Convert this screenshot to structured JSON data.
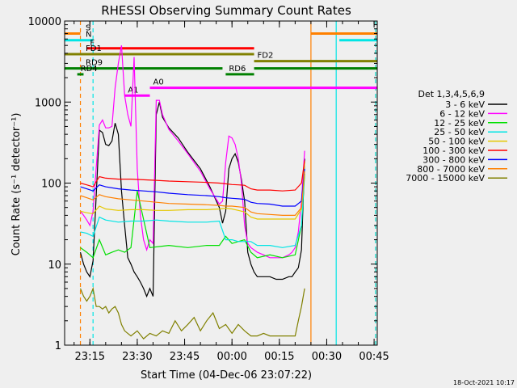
{
  "chart_data": {
    "type": "line",
    "title": "RHESSI Observing Summary Count Rates",
    "xlabel": "Start Time (04-Dec-06 23:07:22)",
    "ylabel": "Count Rate (s⁻¹ detector⁻¹)",
    "footer": "18-Oct-2021 10:17",
    "log_y": true,
    "xlim": [
      "23:07",
      "00:46"
    ],
    "ylim": [
      1,
      10000
    ],
    "x_ticks": [
      "23:15",
      "23:30",
      "23:45",
      "00:00",
      "00:15",
      "00:30",
      "00:45"
    ],
    "y_ticks": [
      "1",
      "10",
      "100",
      "1000",
      "10000"
    ],
    "legend_title": "Det 1,3,4,5,6,9",
    "series": [
      {
        "name": "3 - 6 keV",
        "color": "#000000",
        "x": [
          "23:12",
          "23:13",
          "23:14",
          "23:15",
          "23:16",
          "23:18",
          "23:19",
          "23:20",
          "23:21",
          "23:22",
          "23:23",
          "23:24",
          "23:25",
          "23:26",
          "23:27",
          "23:28",
          "23:29",
          "23:30",
          "23:31",
          "23:32",
          "23:33",
          "23:34",
          "23:35",
          "23:36",
          "23:37",
          "23:38",
          "23:40",
          "23:43",
          "23:46",
          "23:50",
          "23:53",
          "23:56",
          "23:57",
          "23:58",
          "23:59",
          "23:60",
          "00:01",
          "00:02",
          "00:03",
          "00:04",
          "00:05",
          "00:06",
          "00:07",
          "00:08",
          "00:10",
          "00:12",
          "00:14",
          "00:16",
          "00:18",
          "00:19",
          "00:20",
          "00:21",
          "00:22",
          "00:23"
        ],
        "y": [
          14,
          10,
          8,
          7,
          11,
          450,
          420,
          300,
          290,
          330,
          550,
          400,
          80,
          30,
          12,
          10,
          8,
          7,
          6,
          5,
          4,
          5,
          4,
          700,
          1000,
          650,
          480,
          360,
          240,
          150,
          90,
          50,
          32,
          45,
          150,
          200,
          230,
          180,
          110,
          60,
          14,
          10,
          8,
          7,
          7,
          7,
          6.5,
          6.5,
          7,
          7,
          8,
          9,
          15,
          200
        ]
      },
      {
        "name": "6 - 12 keV",
        "color": "#ff00ff",
        "x": [
          "23:12",
          "23:13",
          "23:14",
          "23:15",
          "23:16",
          "23:18",
          "23:19",
          "23:20",
          "23:21",
          "23:22",
          "23:23",
          "23:24",
          "23:25",
          "23:26",
          "23:27",
          "23:28",
          "23:29",
          "23:30",
          "23:31",
          "23:32",
          "23:33",
          "23:34",
          "23:35",
          "23:36",
          "23:37",
          "23:38",
          "23:40",
          "23:43",
          "23:46",
          "23:50",
          "23:53",
          "23:56",
          "23:57",
          "23:58",
          "23:59",
          "23:60",
          "00:01",
          "00:02",
          "00:03",
          "00:04",
          "00:05",
          "00:06",
          "00:07",
          "00:08",
          "00:10",
          "00:12",
          "00:14",
          "00:16",
          "00:18",
          "00:19",
          "00:20",
          "00:21",
          "00:22",
          "00:23"
        ],
        "y": [
          45,
          40,
          35,
          30,
          45,
          520,
          600,
          480,
          480,
          500,
          1500,
          3000,
          5000,
          1200,
          700,
          500,
          3600,
          150,
          40,
          20,
          15,
          20,
          18,
          1050,
          1050,
          700,
          460,
          330,
          230,
          140,
          85,
          55,
          60,
          180,
          380,
          360,
          300,
          200,
          100,
          30,
          18,
          16,
          15,
          14,
          13,
          12,
          12,
          12,
          13,
          14,
          16,
          25,
          60,
          250
        ]
      },
      {
        "name": "12 - 25 keV",
        "color": "#00e000",
        "x": [
          "23:12",
          "23:14",
          "23:16",
          "23:18",
          "23:20",
          "23:22",
          "23:24",
          "23:26",
          "23:28",
          "23:30",
          "23:34",
          "23:40",
          "23:46",
          "23:52",
          "23:56",
          "23:58",
          "00:00",
          "00:02",
          "00:04",
          "00:06",
          "00:08",
          "00:12",
          "00:16",
          "00:20",
          "00:22",
          "00:23"
        ],
        "y": [
          16,
          14,
          12,
          20,
          13,
          14,
          15,
          14,
          16,
          80,
          16,
          17,
          16,
          17,
          17,
          22,
          18,
          19,
          20,
          14,
          12,
          13,
          12,
          13,
          30,
          130
        ]
      },
      {
        "name": "25 - 50 keV",
        "color": "#00e5e5",
        "x": [
          "23:12",
          "23:14",
          "23:16",
          "23:18",
          "23:20",
          "23:24",
          "23:28",
          "23:32",
          "23:36",
          "23:40",
          "23:46",
          "23:52",
          "23:56",
          "23:58",
          "00:00",
          "00:02",
          "00:06",
          "00:08",
          "00:12",
          "00:16",
          "00:20",
          "00:22",
          "00:23"
        ],
        "y": [
          25,
          24,
          22,
          38,
          35,
          33,
          34,
          34,
          35,
          34,
          33,
          33,
          34,
          20,
          20,
          19,
          19,
          17,
          17,
          16,
          17,
          30,
          150
        ]
      },
      {
        "name": "50 - 100 keV",
        "color": "#e5c800",
        "x": [
          "23:12",
          "23:14",
          "23:16",
          "23:18",
          "23:20",
          "23:24",
          "23:28",
          "23:32",
          "23:36",
          "23:40",
          "23:46",
          "23:52",
          "23:56",
          "23:58",
          "00:00",
          "00:02",
          "00:04",
          "00:06",
          "00:08",
          "00:12",
          "00:16",
          "00:20",
          "00:22",
          "00:23"
        ],
        "y": [
          45,
          43,
          42,
          52,
          48,
          46,
          47,
          47,
          46,
          46,
          47,
          47,
          48,
          49,
          48,
          46,
          44,
          38,
          36,
          36,
          36,
          36,
          48,
          180
        ]
      },
      {
        "name": "100 - 300 keV",
        "color": "#ff0000",
        "x": [
          "23:12",
          "23:14",
          "23:16",
          "23:18",
          "23:20",
          "23:24",
          "23:28",
          "23:32",
          "23:36",
          "23:40",
          "23:46",
          "23:52",
          "23:56",
          "23:58",
          "00:00",
          "00:02",
          "00:04",
          "00:06",
          "00:08",
          "00:12",
          "00:16",
          "00:20",
          "00:22",
          "00:23"
        ],
        "y": [
          100,
          95,
          90,
          120,
          115,
          112,
          112,
          110,
          108,
          106,
          104,
          102,
          100,
          98,
          96,
          95,
          94,
          85,
          82,
          82,
          80,
          82,
          100,
          190
        ]
      },
      {
        "name": "300 - 800 keV",
        "color": "#0000ff",
        "x": [
          "23:12",
          "23:14",
          "23:16",
          "23:18",
          "23:20",
          "23:24",
          "23:28",
          "23:32",
          "23:36",
          "23:40",
          "23:46",
          "23:52",
          "23:56",
          "23:58",
          "00:00",
          "00:02",
          "00:04",
          "00:06",
          "00:08",
          "00:12",
          "00:16",
          "00:20",
          "00:22",
          "00:23"
        ],
        "y": [
          90,
          85,
          80,
          95,
          90,
          85,
          82,
          80,
          78,
          75,
          72,
          70,
          68,
          66,
          65,
          64,
          63,
          58,
          56,
          55,
          52,
          52,
          60,
          150
        ]
      },
      {
        "name": "800 - 7000 keV",
        "color": "#ff8000",
        "x": [
          "23:12",
          "23:14",
          "23:16",
          "23:18",
          "23:20",
          "23:24",
          "23:28",
          "23:32",
          "23:36",
          "23:40",
          "23:46",
          "23:52",
          "23:56",
          "23:58",
          "00:00",
          "00:02",
          "00:04",
          "00:06",
          "00:08",
          "00:12",
          "00:16",
          "00:20",
          "00:22",
          "00:23"
        ],
        "y": [
          70,
          66,
          62,
          72,
          68,
          64,
          62,
          60,
          58,
          56,
          55,
          54,
          53,
          52,
          52,
          51,
          50,
          44,
          42,
          41,
          40,
          40,
          50,
          140
        ]
      },
      {
        "name": "7000 - 15000 keV",
        "color": "#808000",
        "x": [
          "23:12",
          "23:13",
          "23:14",
          "23:15",
          "23:16",
          "23:17",
          "23:18",
          "23:19",
          "23:20",
          "23:21",
          "23:22",
          "23:23",
          "23:24",
          "23:25",
          "23:26",
          "23:28",
          "23:30",
          "23:32",
          "23:34",
          "23:36",
          "23:38",
          "23:40",
          "23:42",
          "23:44",
          "23:46",
          "23:48",
          "23:50",
          "23:52",
          "23:54",
          "23:56",
          "23:58",
          "00:00",
          "00:02",
          "00:04",
          "00:06",
          "00:08",
          "00:10",
          "00:12",
          "00:14",
          "00:16",
          "00:18",
          "00:20",
          "00:21",
          "00:22",
          "00:23"
        ],
        "y": [
          5,
          4,
          3.5,
          4,
          5,
          3,
          3,
          2.8,
          3,
          2.5,
          2.8,
          3,
          2.5,
          1.8,
          1.5,
          1.3,
          1.5,
          1.2,
          1.4,
          1.3,
          1.5,
          1.4,
          2,
          1.5,
          1.8,
          2.2,
          1.5,
          2,
          2.5,
          1.6,
          1.8,
          1.4,
          1.8,
          1.5,
          1.3,
          1.3,
          1.4,
          1.3,
          1.3,
          1.3,
          1.3,
          1.3,
          2,
          3,
          5
        ]
      }
    ],
    "overlays": [
      {
        "label": "S",
        "color": "#ff8000",
        "y": 7000,
        "segments": [
          [
            "23:07",
            "23:12"
          ],
          [
            "00:25",
            "00:46"
          ]
        ]
      },
      {
        "label": "N",
        "color": "#00e5e5",
        "y": 5800,
        "segments": [
          [
            "23:07",
            "23:16"
          ],
          [
            "00:34",
            "00:46"
          ]
        ]
      },
      {
        "label": "F",
        "color": "#ff0000",
        "y": 4600,
        "segments": [
          [
            "23:14",
            "00:07"
          ]
        ]
      },
      {
        "label": "FD1",
        "color": "#808000",
        "y": 3900,
        "segments": [
          [
            "23:07",
            "00:07"
          ]
        ]
      },
      {
        "label": "FD2",
        "color": "#808000",
        "y": 3200,
        "segments": [
          [
            "00:07",
            "00:46"
          ]
        ]
      },
      {
        "label": "RD9",
        "color": "#008000",
        "y": 2600,
        "segments": [
          [
            "23:07",
            "23:57"
          ],
          [
            "00:07",
            "00:46"
          ]
        ]
      },
      {
        "label": "RD4",
        "color": "#008000",
        "y": 2200,
        "segments": [
          [
            "23:11",
            "23:13"
          ]
        ]
      },
      {
        "label": "RD6",
        "color": "#008000",
        "y": 2200,
        "segments": [
          [
            "23:58",
            "00:07"
          ]
        ]
      },
      {
        "label": "A0",
        "color": "#ff00ff",
        "y": 1500,
        "segments": [
          [
            "23:34",
            "00:46"
          ]
        ]
      },
      {
        "label": "A1",
        "color": "#ff00ff",
        "y": 1200,
        "segments": [
          [
            "23:26",
            "23:34"
          ]
        ]
      }
    ],
    "vertical_markers": [
      {
        "x": "23:12",
        "color": "#ff8000",
        "style": "dashed"
      },
      {
        "x": "23:16",
        "color": "#00e5e5",
        "style": "dashed"
      },
      {
        "x": "00:25",
        "color": "#ff8000",
        "style": "solid"
      },
      {
        "x": "00:33",
        "color": "#00e5e5",
        "style": "solid"
      },
      {
        "x": "00:46",
        "color": "#ff8000",
        "style": "dashed"
      },
      {
        "x": "00:46",
        "color": "#00e5e5",
        "style": "dashed"
      }
    ]
  }
}
